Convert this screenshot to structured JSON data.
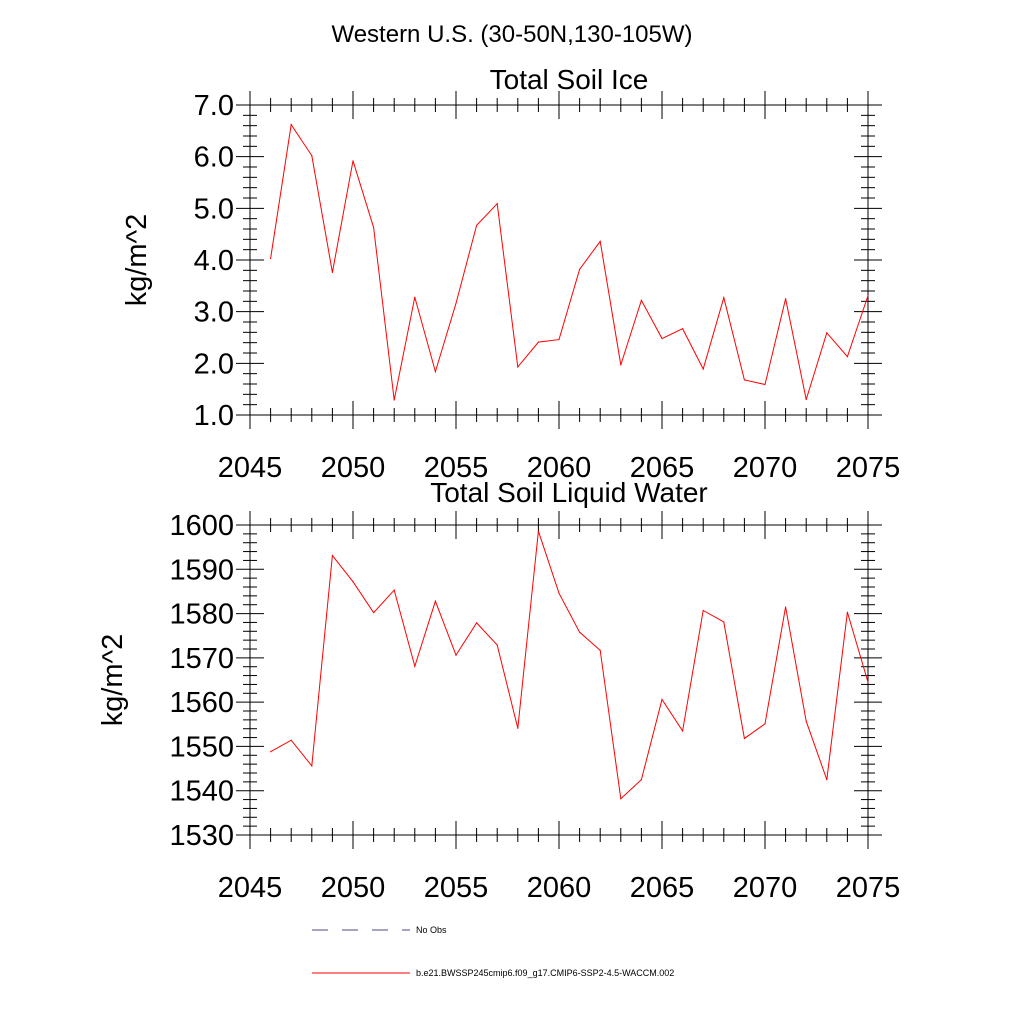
{
  "figure": {
    "title": "Western U.S. (30-50N,130-105W)"
  },
  "chart_data": [
    {
      "type": "line",
      "title": "Total Soil Ice",
      "xlabel": "",
      "ylabel": "kg/m^2",
      "xlim": [
        2045,
        2075
      ],
      "ylim": [
        1.0,
        7.0
      ],
      "x_ticks": [
        2045,
        2050,
        2055,
        2060,
        2065,
        2070,
        2075
      ],
      "y_ticks": [
        1.0,
        2.0,
        3.0,
        4.0,
        5.0,
        6.0,
        7.0
      ],
      "y_tick_labels": [
        "1.0",
        "2.0",
        "3.0",
        "4.0",
        "5.0",
        "6.0",
        "7.0"
      ],
      "series": [
        {
          "color": "#ff0000",
          "x": [
            2046,
            2047,
            2048,
            2049,
            2050,
            2051,
            2052,
            2053,
            2054,
            2055,
            2056,
            2057,
            2058,
            2059,
            2060,
            2061,
            2062,
            2063,
            2064,
            2065,
            2066,
            2067,
            2068,
            2069,
            2070,
            2071,
            2072,
            2073,
            2074,
            2075
          ],
          "values": [
            4.03,
            6.62,
            6.02,
            3.76,
            5.92,
            4.63,
            1.29,
            3.28,
            1.84,
            3.16,
            4.67,
            5.09,
            1.93,
            2.41,
            2.46,
            3.82,
            4.36,
            1.97,
            3.22,
            2.48,
            2.67,
            1.89,
            3.27,
            1.68,
            1.59,
            3.25,
            1.3,
            2.59,
            2.13,
            3.31
          ]
        }
      ]
    },
    {
      "type": "line",
      "title": "Total Soil Liquid Water",
      "xlabel": "",
      "ylabel": "kg/m^2",
      "xlim": [
        2045,
        2075
      ],
      "ylim": [
        1530,
        1600
      ],
      "x_ticks": [
        2045,
        2050,
        2055,
        2060,
        2065,
        2070,
        2075
      ],
      "y_ticks": [
        1530,
        1540,
        1550,
        1560,
        1570,
        1580,
        1590,
        1600
      ],
      "y_tick_labels": [
        "1530",
        "1540",
        "1550",
        "1560",
        "1570",
        "1580",
        "1590",
        "1600"
      ],
      "series": [
        {
          "color": "#ff0000",
          "x": [
            2046,
            2047,
            2048,
            2049,
            2050,
            2051,
            2052,
            2053,
            2054,
            2055,
            2056,
            2057,
            2058,
            2059,
            2060,
            2061,
            2062,
            2063,
            2064,
            2065,
            2066,
            2067,
            2068,
            2069,
            2070,
            2071,
            2072,
            2073,
            2074,
            2075
          ],
          "values": [
            1548.8,
            1551.4,
            1545.6,
            1593.1,
            1587.2,
            1580.2,
            1585.3,
            1568.1,
            1582.8,
            1570.6,
            1577.9,
            1572.9,
            1554.1,
            1598.6,
            1584.6,
            1575.8,
            1571.7,
            1538.2,
            1542.5,
            1560.6,
            1553.5,
            1580.7,
            1578.1,
            1551.8,
            1555.1,
            1581.5,
            1555.7,
            1542.5,
            1580.3,
            1564.5
          ]
        }
      ]
    }
  ],
  "legend": {
    "placement": "bottom",
    "items": [
      {
        "label": "No Obs",
        "color": "#4a4a8a",
        "style": "dashed"
      },
      {
        "label": "b.e21.BWSSP245cmip6.f09_g17.CMIP6-SSP2-4.5-WACCM.002",
        "color": "#ff0000",
        "style": "solid"
      }
    ]
  }
}
